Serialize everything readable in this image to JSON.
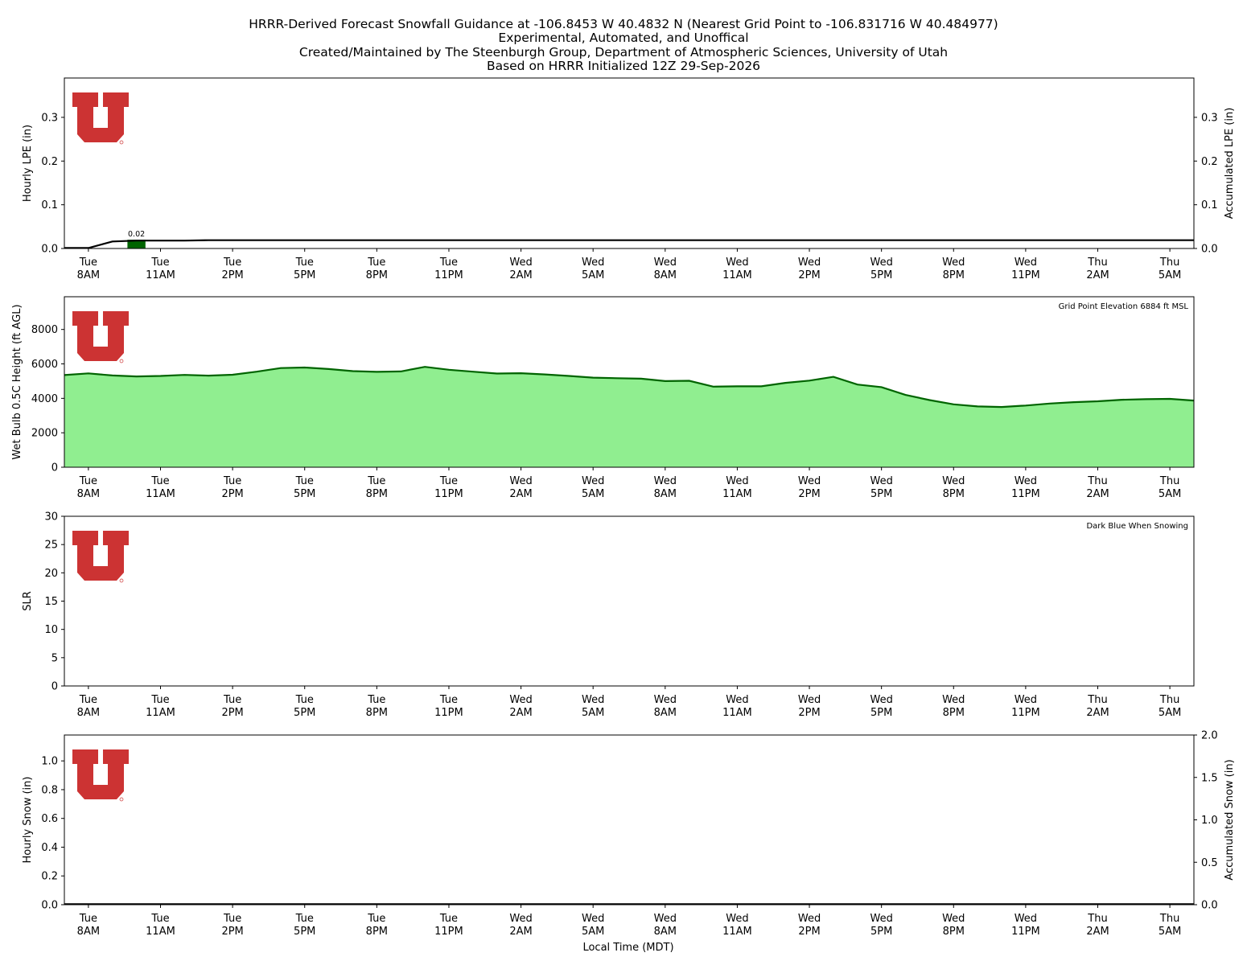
{
  "title": {
    "lines": [
      "HRRR-Derived Forecast Snowfall Guidance at -106.8453 W 40.4832 N (Nearest Grid Point to -106.831716 W 40.484977)",
      "Experimental, Automated, and Unoffical",
      "Created/Maintained by The Steenburgh Group, Department of Atmospheric Sciences, University of Utah",
      "Based on HRRR Initialized 12Z 29-Sep-2026"
    ]
  },
  "colors": {
    "logo_red": "#cc3333",
    "precip_bar": "#006400",
    "wetbulb_fill": "#90ee90",
    "wetbulb_line": "#006400",
    "accum_line": "#000000"
  },
  "xaxis": {
    "xlabel": "Local Time (MDT)",
    "ticks": [
      {
        "h": 0,
        "day": "Tue",
        "time": "8AM"
      },
      {
        "h": 3,
        "day": "Tue",
        "time": "11AM"
      },
      {
        "h": 6,
        "day": "Tue",
        "time": "2PM"
      },
      {
        "h": 9,
        "day": "Tue",
        "time": "5PM"
      },
      {
        "h": 12,
        "day": "Tue",
        "time": "8PM"
      },
      {
        "h": 15,
        "day": "Tue",
        "time": "11PM"
      },
      {
        "h": 18,
        "day": "Wed",
        "time": "2AM"
      },
      {
        "h": 21,
        "day": "Wed",
        "time": "5AM"
      },
      {
        "h": 24,
        "day": "Wed",
        "time": "8AM"
      },
      {
        "h": 27,
        "day": "Wed",
        "time": "11AM"
      },
      {
        "h": 30,
        "day": "Wed",
        "time": "2PM"
      },
      {
        "h": 33,
        "day": "Wed",
        "time": "5PM"
      },
      {
        "h": 36,
        "day": "Wed",
        "time": "8PM"
      },
      {
        "h": 39,
        "day": "Wed",
        "time": "11PM"
      },
      {
        "h": 42,
        "day": "Thu",
        "time": "2AM"
      },
      {
        "h": 45,
        "day": "Thu",
        "time": "5AM"
      }
    ]
  },
  "chart_data": [
    {
      "type": "bar",
      "panel": "hourly-lpe",
      "ylabel": "Hourly LPE (in)",
      "ylabel_right": "Accumulated LPE (in)",
      "ylim": [
        0,
        0.39
      ],
      "yticks": [
        "0.0",
        "0.1",
        "0.2",
        "0.3"
      ],
      "yticks_right": [
        "0.0",
        "0.1",
        "0.2",
        "0.3"
      ],
      "xlim": [
        -1,
        46
      ],
      "series": [
        {
          "kind": "bar",
          "x": [
            2
          ],
          "values": [
            0.02
          ],
          "labels": [
            "0.02"
          ]
        },
        {
          "kind": "line",
          "x": [
            -1,
            0,
            1,
            2,
            3,
            4,
            5,
            46
          ],
          "values": [
            0,
            0,
            0.016,
            0.018,
            0.018,
            0.018,
            0.019,
            0.019
          ]
        }
      ]
    },
    {
      "type": "area",
      "panel": "wet-bulb-height",
      "ylabel": "Wet Bulb 0.5C Height (ft AGL)",
      "annotation": "Grid Point Elevation 6884 ft MSL",
      "ylim": [
        0,
        9900
      ],
      "yticks": [
        "0",
        "2000",
        "4000",
        "6000",
        "8000"
      ],
      "xlim": [
        -1,
        46
      ],
      "x": [
        -1,
        0,
        1,
        2,
        3,
        4,
        5,
        6,
        7,
        8,
        9,
        10,
        11,
        12,
        13,
        14,
        15,
        16,
        17,
        18,
        19,
        20,
        21,
        22,
        23,
        24,
        25,
        26,
        27,
        28,
        29,
        30,
        31,
        32,
        33,
        34,
        35,
        36,
        37,
        38,
        39,
        40,
        41,
        42,
        43,
        44,
        45,
        46
      ],
      "values": [
        5350,
        5450,
        5330,
        5270,
        5300,
        5360,
        5320,
        5370,
        5550,
        5760,
        5790,
        5700,
        5580,
        5540,
        5560,
        5830,
        5660,
        5550,
        5440,
        5460,
        5390,
        5300,
        5200,
        5170,
        5140,
        5000,
        5020,
        4680,
        4700,
        4700,
        4900,
        5030,
        5250,
        4800,
        4650,
        4200,
        3900,
        3650,
        3530,
        3500,
        3580,
        3700,
        3780,
        3830,
        3920,
        3950,
        3970,
        3870
      ]
    },
    {
      "type": "line",
      "panel": "slr",
      "ylabel": "SLR",
      "annotation": "Dark Blue When Snowing",
      "ylim": [
        0,
        30
      ],
      "yticks": [
        "0",
        "5",
        "10",
        "15",
        "20",
        "25",
        "30"
      ],
      "xlim": [
        -1,
        46
      ],
      "x": [],
      "values": []
    },
    {
      "type": "bar",
      "panel": "hourly-snow",
      "ylabel": "Hourly Snow (in)",
      "ylabel_right": "Accumulated Snow (in)",
      "ylim": [
        0,
        1.18
      ],
      "ylim_right": [
        0,
        2.0
      ],
      "yticks": [
        "0.0",
        "0.2",
        "0.4",
        "0.6",
        "0.8",
        "1.0"
      ],
      "yticks_right": [
        "0.0",
        "0.5",
        "1.0",
        "1.5",
        "2.0"
      ],
      "xlim": [
        -1,
        46
      ],
      "series": [
        {
          "kind": "line",
          "x": [
            -1,
            46
          ],
          "values": [
            0,
            0
          ]
        }
      ]
    }
  ]
}
